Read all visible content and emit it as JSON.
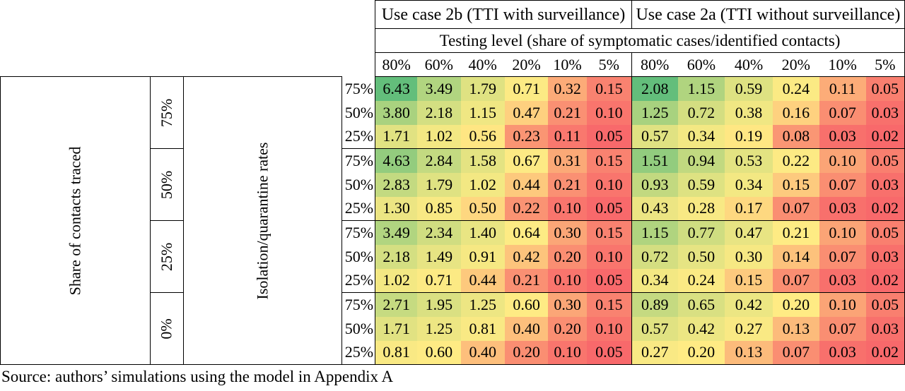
{
  "table": {
    "use_case_2b": "Use case 2b (TTI with surveillance)",
    "use_case_2a": "Use case 2a (TTI without surveillance)",
    "testing_level": "Testing level (share of symptomatic cases/identified contacts)",
    "testing_columns": [
      "80%",
      "60%",
      "40%",
      "20%",
      "10%",
      "5%"
    ],
    "row_axis_label": "Share of contacts traced",
    "iso_axis_label": "Isolation/quarantine rates",
    "blocks": [
      {
        "traced": "75%",
        "rows": [
          {
            "iso": "75%",
            "uc2b": [
              "6.43",
              "3.49",
              "1.79",
              "0.71",
              "0.32",
              "0.15"
            ],
            "uc2a": [
              "2.08",
              "1.15",
              "0.59",
              "0.24",
              "0.11",
              "0.05"
            ]
          },
          {
            "iso": "50%",
            "uc2b": [
              "3.80",
              "2.18",
              "1.15",
              "0.47",
              "0.21",
              "0.10"
            ],
            "uc2a": [
              "1.25",
              "0.72",
              "0.38",
              "0.16",
              "0.07",
              "0.03"
            ]
          },
          {
            "iso": "25%",
            "uc2b": [
              "1.71",
              "1.02",
              "0.56",
              "0.23",
              "0.11",
              "0.05"
            ],
            "uc2a": [
              "0.57",
              "0.34",
              "0.19",
              "0.08",
              "0.03",
              "0.02"
            ]
          }
        ]
      },
      {
        "traced": "50%",
        "rows": [
          {
            "iso": "75%",
            "uc2b": [
              "4.63",
              "2.84",
              "1.58",
              "0.67",
              "0.31",
              "0.15"
            ],
            "uc2a": [
              "1.51",
              "0.94",
              "0.53",
              "0.22",
              "0.10",
              "0.05"
            ]
          },
          {
            "iso": "50%",
            "uc2b": [
              "2.83",
              "1.79",
              "1.02",
              "0.44",
              "0.21",
              "0.10"
            ],
            "uc2a": [
              "0.93",
              "0.59",
              "0.34",
              "0.15",
              "0.07",
              "0.03"
            ]
          },
          {
            "iso": "25%",
            "uc2b": [
              "1.30",
              "0.85",
              "0.50",
              "0.22",
              "0.10",
              "0.05"
            ],
            "uc2a": [
              "0.43",
              "0.28",
              "0.17",
              "0.07",
              "0.03",
              "0.02"
            ]
          }
        ]
      },
      {
        "traced": "25%",
        "rows": [
          {
            "iso": "75%",
            "uc2b": [
              "3.49",
              "2.34",
              "1.40",
              "0.64",
              "0.30",
              "0.15"
            ],
            "uc2a": [
              "1.15",
              "0.77",
              "0.47",
              "0.21",
              "0.10",
              "0.05"
            ]
          },
          {
            "iso": "50%",
            "uc2b": [
              "2.18",
              "1.49",
              "0.91",
              "0.42",
              "0.20",
              "0.10"
            ],
            "uc2a": [
              "0.72",
              "0.50",
              "0.30",
              "0.14",
              "0.07",
              "0.03"
            ]
          },
          {
            "iso": "25%",
            "uc2b": [
              "1.02",
              "0.71",
              "0.44",
              "0.21",
              "0.10",
              "0.05"
            ],
            "uc2a": [
              "0.34",
              "0.24",
              "0.15",
              "0.07",
              "0.03",
              "0.02"
            ]
          }
        ]
      },
      {
        "traced": "0%",
        "rows": [
          {
            "iso": "75%",
            "uc2b": [
              "2.71",
              "1.95",
              "1.25",
              "0.60",
              "0.30",
              "0.15"
            ],
            "uc2a": [
              "0.89",
              "0.65",
              "0.42",
              "0.20",
              "0.10",
              "0.05"
            ]
          },
          {
            "iso": "50%",
            "uc2b": [
              "1.71",
              "1.25",
              "0.81",
              "0.40",
              "0.20",
              "0.10"
            ],
            "uc2a": [
              "0.57",
              "0.42",
              "0.27",
              "0.13",
              "0.07",
              "0.03"
            ]
          },
          {
            "iso": "25%",
            "uc2b": [
              "0.81",
              "0.60",
              "0.40",
              "0.20",
              "0.10",
              "0.05"
            ],
            "uc2a": [
              "0.27",
              "0.20",
              "0.13",
              "0.07",
              "0.03",
              "0.02"
            ]
          }
        ]
      }
    ]
  },
  "colors": {
    "high": "#63be7b",
    "mid": "#ffeb84",
    "low": "#f8696b"
  },
  "source": "Source: authors’ simulations using the model in Appendix A"
}
